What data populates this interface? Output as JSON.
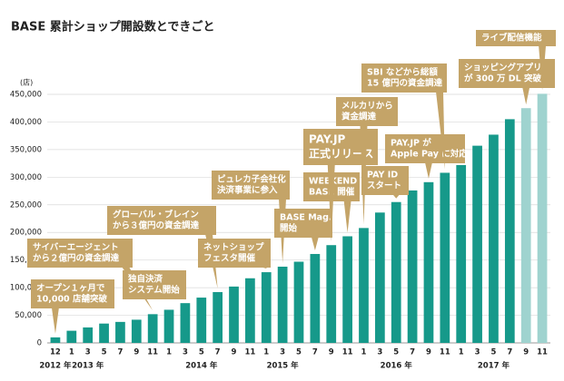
{
  "chart_data": {
    "type": "bar",
    "title": "BASE 累計ショップ開設数とできごと",
    "y_unit_label": "(店)",
    "categories": [
      "12",
      "1",
      "3",
      "5",
      "7",
      "9",
      "11",
      "1",
      "3",
      "5",
      "7",
      "9",
      "11",
      "1",
      "3",
      "5",
      "7",
      "9",
      "11",
      "1",
      "3",
      "5",
      "7",
      "9",
      "11",
      "1",
      "3",
      "5",
      "7",
      "9",
      "11"
    ],
    "values": [
      10000,
      22000,
      28000,
      35000,
      38000,
      42000,
      52000,
      60000,
      72000,
      82000,
      92000,
      102000,
      117000,
      128000,
      138000,
      147000,
      161000,
      177000,
      193000,
      208000,
      236000,
      255000,
      276000,
      291000,
      308000,
      322000,
      357000,
      377000,
      405000,
      425000,
      451000
    ],
    "colors": [
      "#16998a",
      "#16998a",
      "#16998a",
      "#16998a",
      "#16998a",
      "#16998a",
      "#16998a",
      "#16998a",
      "#16998a",
      "#16998a",
      "#16998a",
      "#16998a",
      "#16998a",
      "#16998a",
      "#16998a",
      "#16998a",
      "#16998a",
      "#16998a",
      "#16998a",
      "#16998a",
      "#16998a",
      "#16998a",
      "#16998a",
      "#16998a",
      "#16998a",
      "#16998a",
      "#16998a",
      "#16998a",
      "#16998a",
      "#9fd3cf",
      "#9fd3cf"
    ],
    "year_labels": [
      {
        "label": "2012 年",
        "at_category": 0
      },
      {
        "label": "2013 年",
        "at_category": 2
      },
      {
        "label": "2014 年",
        "at_category": 9
      },
      {
        "label": "2015 年",
        "at_category": 14
      },
      {
        "label": "2016 年",
        "at_category": 21
      },
      {
        "label": "2017 年",
        "at_category": 27
      }
    ],
    "ylim": [
      0,
      450000
    ],
    "yticks": [
      0,
      {
        "value": 50000,
        "label": "50,000"
      },
      {
        "value": 100000,
        "label": "100,000"
      },
      {
        "value": 150000,
        "label": "150,000"
      },
      {
        "value": 200000,
        "label": "200,000"
      },
      {
        "value": 250000,
        "label": "250,000"
      },
      {
        "value": 300000,
        "label": "300,000"
      },
      {
        "value": 350000,
        "label": "350,000"
      },
      {
        "value": 400000,
        "label": "400,000"
      },
      {
        "value": 450000,
        "label": "450,000"
      }
    ],
    "grid": true,
    "annotation_color": "#c4a468",
    "annotations": [
      {
        "lines": [
          "オープン１ヶ月で",
          "10,000 店舗突破"
        ],
        "at_category": 0
      },
      {
        "lines": [
          "サイバーエージェント",
          "から２億円の資金調達"
        ],
        "at_category": 6
      },
      {
        "lines": [
          "独自決済",
          "システム開始"
        ],
        "at_category": 8
      },
      {
        "lines": [
          "グローバル・ブレイン",
          "から３億円の資金調達"
        ],
        "at_category": 10
      },
      {
        "lines": [
          "ネットショップ",
          "フェスタ開催"
        ],
        "at_category": 13
      },
      {
        "lines": [
          "ピュレカ子会社化",
          "決済事業に参入"
        ],
        "at_category": 14
      },
      {
        "lines": [
          "BASE Mag.",
          "開始"
        ],
        "at_category": 16
      },
      {
        "lines": [
          "WEEKEND",
          "BASE 開催"
        ],
        "at_category": 18
      },
      {
        "lines": [
          "PAY.JP",
          "正式リリース"
        ],
        "at_category": 17
      },
      {
        "lines": [
          "メルカリから",
          "資金調達"
        ],
        "at_category": 19
      },
      {
        "lines": [
          "PAY ID",
          "スタート"
        ],
        "at_category": 21
      },
      {
        "lines": [
          "PAY.JP が",
          "Apple Pay に対応"
        ],
        "at_category": 23
      },
      {
        "lines": [
          "SBI などから総額",
          "15 億円の資金調達"
        ],
        "at_category": 24
      },
      {
        "lines": [
          "ショッピングアプリ",
          "が 300 万 DL 突破"
        ],
        "at_category": 29
      },
      {
        "lines": [
          "ライブ配信機能"
        ],
        "at_category": 30
      }
    ]
  }
}
